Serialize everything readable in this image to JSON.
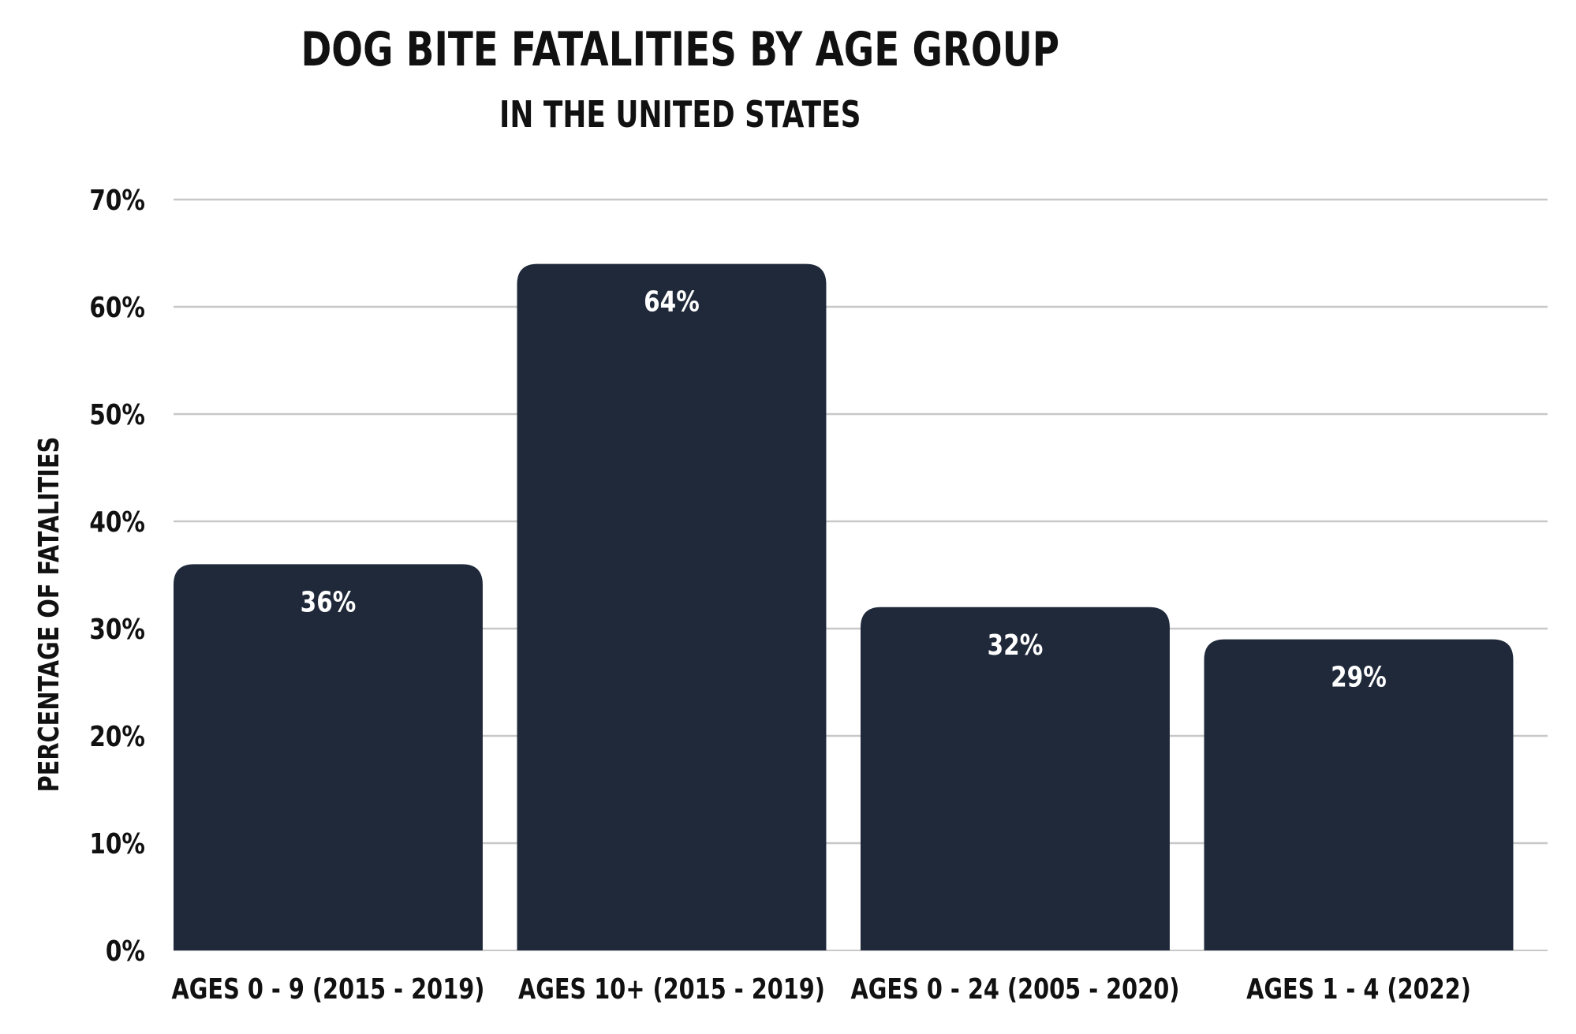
{
  "chart_data": {
    "type": "bar",
    "title": "DOG BITE FATALITIES BY AGE GROUP",
    "subtitle": "IN THE UNITED STATES",
    "xlabel": "",
    "ylabel": "PERCENTAGE OF FATALITIES",
    "categories": [
      "AGES 0 - 9 (2015 - 2019)",
      "AGES 10+ (2015 - 2019)",
      "AGES 0 - 24 (2005 - 2020)",
      "AGES 1 - 4 (2022)"
    ],
    "values": [
      36,
      64,
      32,
      29
    ],
    "value_labels": [
      "36%",
      "64%",
      "32%",
      "29%"
    ],
    "ylim": [
      0,
      70
    ],
    "yticks": [
      0,
      10,
      20,
      30,
      40,
      50,
      60,
      70
    ],
    "ytick_labels": [
      "0%",
      "10%",
      "20%",
      "30%",
      "40%",
      "50%",
      "60%",
      "70%"
    ],
    "grid": true,
    "legend": "none",
    "colors": {
      "bar": "#1f293a",
      "grid": "#c8c8c8",
      "value_text": "#ffffff",
      "text": "#111111"
    }
  }
}
